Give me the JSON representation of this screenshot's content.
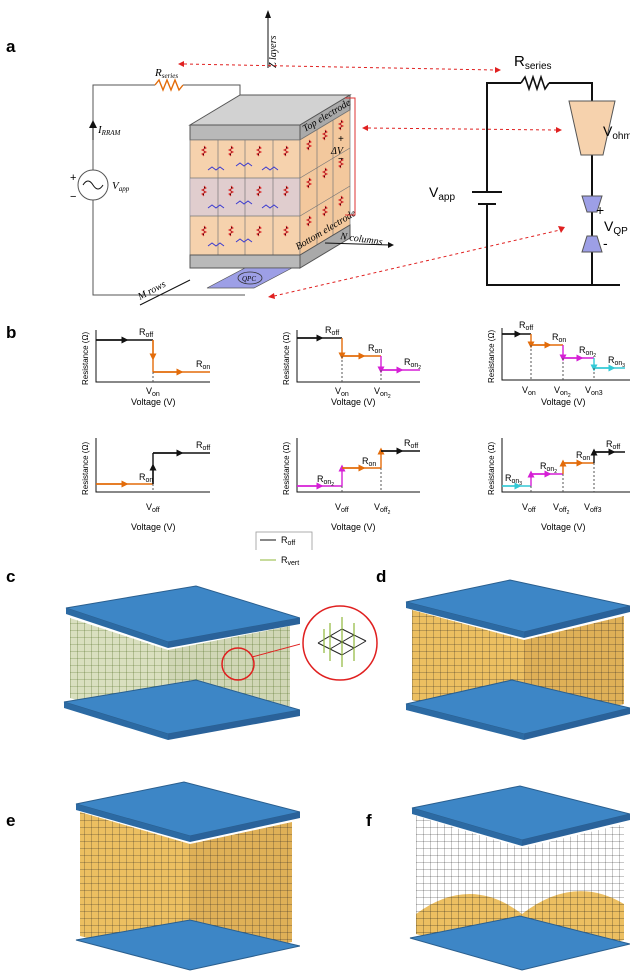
{
  "panels": {
    "a": "a",
    "b": "b",
    "c": "c",
    "d": "d",
    "e": "e",
    "f": "f"
  },
  "schematic": {
    "r_series": "R",
    "r_series_sub": "series",
    "i_rram": "I",
    "i_rram_sub": "RRAM",
    "v_app": "V",
    "v_app_sub": "app",
    "plus": "+",
    "minus": "−",
    "top_electrode": "Top electrode",
    "bottom_electrode": "Bottom electrode",
    "z_layers": "Z layers",
    "n_columns": "N columns",
    "m_rows": "M rows",
    "delta_v": "ΔV",
    "qpc": "QPC"
  },
  "circuit": {
    "r_series": "R",
    "r_series_sub": "series",
    "v_ohm": "V",
    "v_ohm_sub": "ohm",
    "v_app": "V",
    "v_app_sub": "app",
    "v_qpc": "V",
    "v_qpc_sub": "QP",
    "plus": "+",
    "minus": "-"
  },
  "plots": {
    "ylabel": "Resistance (Ω)",
    "xlabel": "Voltage (V)",
    "p1": {
      "r_off": "off",
      "r_on": "on",
      "v_on": "on"
    },
    "p2": {
      "r_off": "off",
      "r_on": "on",
      "r_on2": "on",
      "v_on": "on",
      "v_on2": "on"
    },
    "p3": {
      "r_off": "off",
      "r_on": "on",
      "r_on2": "on",
      "r_on3": "on",
      "v_on": "on",
      "v_on2": "on",
      "v_on3": "on3"
    },
    "p4": {
      "r_off": "off",
      "r_on": "on",
      "v_off": "off"
    },
    "p5": {
      "r_off": "off",
      "r_on": "on",
      "r_on2": "on",
      "v_off": "off",
      "v_off2": "off"
    },
    "p6": {
      "r_off": "off",
      "r_on": "on",
      "r_on2": "on",
      "r_on3": "on",
      "v_off": "off",
      "v_off2": "off",
      "v_off3": "off3"
    }
  },
  "legend": {
    "r_off": "R",
    "r_off_sub": "off",
    "r_vert": "R",
    "r_vert_sub": "vert"
  },
  "colors": {
    "electrode_blue": "#3d86c6",
    "filament_gold": "#e9b445",
    "orange_step": "#e36c0a",
    "magenta_step": "#d61fd6",
    "cyan_step": "#33c9d6",
    "cell_peach": "#f6d2ad",
    "cell_lavender": "#c9c8f0",
    "qpc_purple": "#9d9fe6",
    "grid_green": "#6a8f2a"
  }
}
